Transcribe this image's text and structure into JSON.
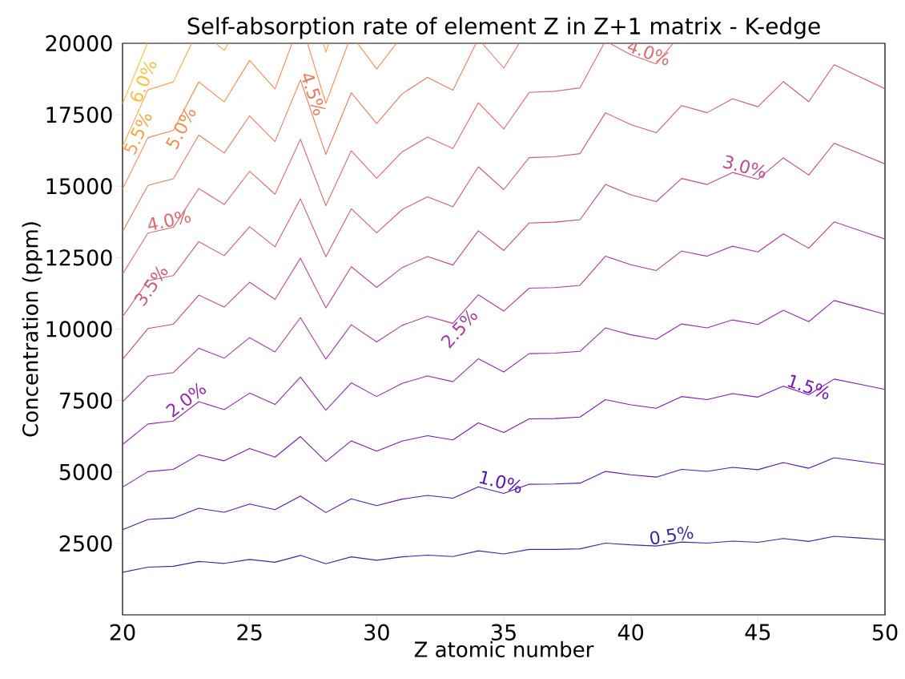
{
  "chart_data": {
    "type": "line",
    "title": "Self-absorption rate of element Z in Z+1 matrix - K-edge",
    "xlabel": "Z atomic number",
    "ylabel": "Concentration (ppm)",
    "x": [
      20,
      21,
      22,
      23,
      24,
      25,
      26,
      27,
      28,
      29,
      30,
      31,
      32,
      33,
      34,
      35,
      36,
      37,
      38,
      39,
      40,
      41,
      42,
      43,
      44,
      45,
      46,
      47,
      48,
      49,
      50
    ],
    "xlim": [
      20,
      50
    ],
    "ylim": [
      0,
      20000
    ],
    "xticks": [
      20,
      25,
      30,
      35,
      40,
      45,
      50
    ],
    "yticks": [
      2500,
      5000,
      7500,
      10000,
      12500,
      15000,
      17500,
      20000
    ],
    "series": [
      {
        "color": "#3a2aa0",
        "values": [
          1490,
          1670,
          1700,
          1870,
          1800,
          1940,
          1840,
          2080,
          1790,
          2030,
          1910,
          2030,
          2090,
          2040,
          2240,
          2130,
          2290,
          2290,
          2310,
          2510,
          2450,
          2410,
          2550,
          2510,
          2580,
          2540,
          2670,
          2570,
          2750,
          2690,
          2630
        ]
      },
      {
        "color": "#5a14b0",
        "values": [
          2980,
          3340,
          3390,
          3730,
          3590,
          3880,
          3680,
          4160,
          3580,
          4060,
          3820,
          4050,
          4180,
          4080,
          4480,
          4250,
          4570,
          4580,
          4610,
          5020,
          4900,
          4820,
          5090,
          5020,
          5160,
          5080,
          5330,
          5130,
          5500,
          5380,
          5260
        ]
      },
      {
        "color": "#7a18b4",
        "values": [
          4470,
          5010,
          5090,
          5600,
          5390,
          5820,
          5520,
          6240,
          5370,
          6090,
          5730,
          6080,
          6270,
          6120,
          6720,
          6380,
          6860,
          6870,
          6920,
          7530,
          7350,
          7230,
          7640,
          7530,
          7740,
          7620,
          8000,
          7700,
          8250,
          8070,
          7890
        ]
      },
      {
        "color": "#9428ac",
        "values": [
          5960,
          6680,
          6780,
          7460,
          7180,
          7760,
          7360,
          8320,
          7160,
          8120,
          7640,
          8100,
          8360,
          8160,
          8960,
          8500,
          9140,
          9160,
          9220,
          10040,
          9800,
          9640,
          10180,
          10040,
          10320,
          10160,
          10660,
          10260,
          11000,
          10760,
          10520
        ]
      },
      {
        "color": "#a83aa0",
        "values": [
          7450,
          8350,
          8480,
          9330,
          8980,
          9700,
          9200,
          10400,
          8950,
          10150,
          9550,
          10130,
          10450,
          10200,
          11200,
          10630,
          11430,
          11450,
          11530,
          12550,
          12250,
          12050,
          12730,
          12550,
          12900,
          12700,
          13330,
          12830,
          13750,
          13450,
          13150
        ]
      },
      {
        "color": "#bc4a90",
        "values": [
          8940,
          10020,
          10170,
          11190,
          10770,
          11640,
          11040,
          12480,
          10740,
          12180,
          11460,
          12150,
          12540,
          12240,
          13440,
          12750,
          13710,
          13740,
          13830,
          15060,
          14700,
          14460,
          15270,
          15060,
          15480,
          15240,
          15990,
          15390,
          16500,
          16140,
          15780
        ]
      },
      {
        "color": "#cc5a80",
        "values": [
          10430,
          11690,
          11870,
          13060,
          12570,
          13580,
          12880,
          14560,
          12530,
          14210,
          13370,
          14180,
          14630,
          14280,
          15680,
          14880,
          16000,
          16030,
          16140,
          17570,
          17150,
          16870,
          17820,
          17570,
          18060,
          17780,
          18660,
          17960,
          19250,
          18830,
          18410
        ]
      },
      {
        "color": "#dc6870",
        "x": [
          20,
          21,
          22,
          23,
          24,
          25,
          26,
          27,
          28,
          29,
          30,
          31,
          32,
          33,
          34,
          35,
          36,
          37,
          38,
          38.95,
          39,
          39.17,
          40,
          41,
          41.67
        ],
        "values": [
          11920,
          13360,
          13560,
          14920,
          14360,
          15520,
          14720,
          16640,
          14320,
          16240,
          15280,
          16200,
          16720,
          16320,
          17920,
          17000,
          18280,
          18320,
          18440,
          20000,
          null,
          20000,
          19600,
          19280,
          20000
        ]
      },
      {
        "color": "#e87a60",
        "x": [
          20,
          21,
          22,
          23,
          24,
          25,
          26,
          27,
          28,
          29,
          30,
          31,
          32,
          33,
          33.91,
          34,
          34.15,
          35,
          35.61
        ],
        "values": [
          13410,
          15030,
          15260,
          16790,
          16160,
          17460,
          16560,
          18720,
          16110,
          18270,
          17190,
          18230,
          18810,
          18360,
          20000,
          null,
          20000,
          19130,
          20000
        ]
      },
      {
        "color": "#f08c50",
        "x": [
          20,
          21,
          22,
          23,
          24,
          25,
          26,
          26.67,
          27,
          27.28,
          28,
          28.88,
          29,
          29.25,
          30,
          30.78
        ],
        "values": [
          14900,
          16700,
          16950,
          18650,
          17950,
          19400,
          18400,
          20000,
          null,
          20000,
          17900,
          20000,
          null,
          20000,
          19100,
          20000
        ]
      },
      {
        "color": "#f5a444",
        "x": [
          20,
          21,
          22,
          22.72,
          23,
          23.67,
          24,
          24.16,
          25,
          27.9,
          28,
          28.12
        ],
        "values": [
          16390,
          18370,
          18650,
          20000,
          null,
          20000,
          19750,
          20000,
          null,
          20000,
          19690,
          20000
        ]
      },
      {
        "color": "#f6c03a",
        "x": [
          20,
          20.98
        ],
        "values": [
          17880,
          20000
        ]
      }
    ],
    "annotations": [
      {
        "text": "0.5%",
        "x": 41.65,
        "y": 2500
      },
      {
        "text": "1.0%",
        "x": 34.8,
        "y": 4370
      },
      {
        "text": "1.5%",
        "x": 46.9,
        "y": 7700
      },
      {
        "text": "2.0%",
        "x": 22.7,
        "y": 7300
      },
      {
        "text": "2.5%",
        "x": 33.0,
        "y": 10220
      },
      {
        "text": "3.0%",
        "x": 44.4,
        "y": 15400
      },
      {
        "text": "3.5%",
        "x": 20.85,
        "y": 11700
      },
      {
        "text": "4.0%",
        "x": 21.9,
        "y": 13520
      },
      {
        "text": "4.0%",
        "x": 40.6,
        "y": 19400
      },
      {
        "text": "4.5%",
        "x": 27.2,
        "y": 18140
      },
      {
        "text": "5.0%",
        "x": 22.0,
        "y": 17170
      },
      {
        "text": "5.5%",
        "x": 20.3,
        "y": 16980
      },
      {
        "text": "6.0%",
        "x": 20.5,
        "y": 18790
      }
    ]
  }
}
